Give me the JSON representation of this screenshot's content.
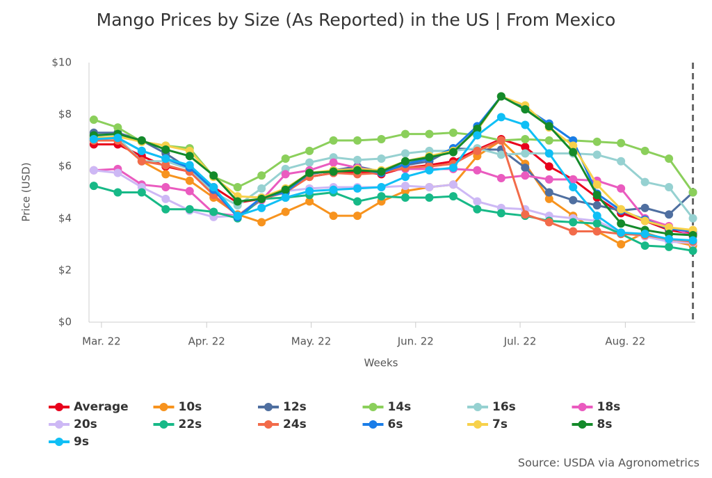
{
  "chart_data": {
    "type": "line",
    "title": "Mango Prices by Size (As Reported) in the US | From Mexico",
    "x_label": "Weeks",
    "y_label": "Price (USD)",
    "source": "Source: USDA via Agronometrics",
    "x": [
      0,
      1,
      2,
      3,
      4,
      5,
      6,
      7,
      8,
      9,
      10,
      11,
      12,
      13,
      14,
      15,
      16,
      17,
      18,
      19,
      20,
      21,
      22,
      23,
      24,
      25
    ],
    "xlim": [
      -0.2,
      25.1
    ],
    "xticks": [
      {
        "value": 0.32,
        "label": "Mar. 22"
      },
      {
        "value": 4.71,
        "label": "Apr. 22"
      },
      {
        "value": 9.07,
        "label": "May. 22"
      },
      {
        "value": 13.43,
        "label": "Jun. 22"
      },
      {
        "value": 17.79,
        "label": "Jul. 22"
      },
      {
        "value": 22.18,
        "label": "Aug. 22"
      }
    ],
    "ylim": [
      0,
      10
    ],
    "yticks": [
      {
        "value": 0,
        "label": "$0"
      },
      {
        "value": 2,
        "label": "$2"
      },
      {
        "value": 4,
        "label": "$4"
      },
      {
        "value": 6,
        "label": "$6"
      },
      {
        "value": 8,
        "label": "$8"
      },
      {
        "value": 10,
        "label": "$10"
      }
    ],
    "grid": false,
    "series": [
      {
        "name": "Average",
        "color": "#e8001c",
        "values": [
          6.85,
          6.85,
          6.4,
          6.0,
          5.8,
          5.2,
          4.6,
          4.75,
          5.05,
          5.6,
          5.75,
          5.8,
          5.7,
          5.95,
          6.05,
          6.2,
          6.65,
          7.05,
          6.75,
          6.0,
          5.5,
          4.8,
          4.2,
          3.9,
          3.55,
          3.4
        ]
      },
      {
        "name": "10s",
        "color": "#f7931e",
        "values": [
          7.0,
          7.0,
          6.2,
          5.7,
          5.45,
          4.8,
          4.15,
          3.85,
          4.25,
          4.65,
          4.1,
          4.1,
          4.65,
          5.05,
          5.2,
          5.3,
          6.4,
          7.0,
          6.1,
          4.75,
          4.1,
          3.5,
          3.0,
          3.45,
          3.15,
          2.95
        ]
      },
      {
        "name": "12s",
        "color": "#4f6fa0",
        "values": [
          7.3,
          7.3,
          7.0,
          6.5,
          5.9,
          5.2,
          4.05,
          4.8,
          5.0,
          5.7,
          5.85,
          6.0,
          5.8,
          6.05,
          6.2,
          6.7,
          6.65,
          6.65,
          5.95,
          5.0,
          4.7,
          4.5,
          4.3,
          4.4,
          4.15,
          5.0
        ]
      },
      {
        "name": "14s",
        "color": "#8bcf5b",
        "values": [
          7.8,
          7.5,
          6.95,
          6.8,
          6.7,
          5.6,
          5.2,
          5.65,
          6.3,
          6.6,
          7.0,
          7.0,
          7.05,
          7.25,
          7.25,
          7.3,
          7.2,
          7.0,
          7.05,
          7.0,
          7.0,
          6.95,
          6.9,
          6.6,
          6.3,
          5.0
        ]
      },
      {
        "name": "16s",
        "color": "#96d1d1",
        "values": [
          7.15,
          7.1,
          6.2,
          6.2,
          5.9,
          5.0,
          4.5,
          5.15,
          5.9,
          6.15,
          6.35,
          6.25,
          6.3,
          6.5,
          6.6,
          6.6,
          6.7,
          6.45,
          6.5,
          6.5,
          6.5,
          6.45,
          6.2,
          5.4,
          5.2,
          4.0
        ]
      },
      {
        "name": "18s",
        "color": "#ea5bbf",
        "values": [
          5.85,
          5.9,
          5.3,
          5.2,
          5.05,
          4.2,
          4.1,
          4.7,
          5.7,
          5.85,
          6.15,
          5.95,
          5.8,
          5.9,
          5.9,
          5.9,
          5.85,
          5.55,
          5.65,
          5.5,
          5.5,
          5.45,
          5.15,
          4.0,
          3.7,
          3.3
        ]
      },
      {
        "name": "20s",
        "color": "#cdb8f5",
        "values": [
          5.85,
          5.75,
          5.2,
          4.75,
          4.3,
          4.05,
          4.1,
          4.8,
          5.05,
          5.15,
          5.2,
          5.2,
          5.2,
          5.25,
          5.2,
          5.3,
          4.65,
          4.4,
          4.35,
          4.1,
          4.0,
          3.9,
          3.45,
          3.3,
          3.1,
          3.05
        ]
      },
      {
        "name": "22s",
        "color": "#17b987",
        "values": [
          5.25,
          5.0,
          5.0,
          4.35,
          4.35,
          4.25,
          4.0,
          4.75,
          4.8,
          4.9,
          5.0,
          4.65,
          4.85,
          4.8,
          4.8,
          4.85,
          4.35,
          4.2,
          4.1,
          3.9,
          3.85,
          3.8,
          3.4,
          2.95,
          2.9,
          2.75
        ]
      },
      {
        "name": "24s",
        "color": "#f26b4a",
        "values": [
          7.0,
          7.0,
          6.2,
          6.05,
          5.8,
          4.9,
          4.1,
          4.75,
          5.0,
          5.6,
          5.75,
          5.7,
          5.75,
          5.95,
          6.0,
          6.1,
          6.6,
          7.0,
          4.15,
          3.85,
          3.5,
          3.5,
          3.4,
          3.35,
          3.2,
          3.1
        ]
      },
      {
        "name": "6s",
        "color": "#1a7de8",
        "values": [
          7.1,
          7.1,
          6.6,
          6.3,
          5.95,
          5.1,
          4.05,
          4.8,
          5.0,
          5.75,
          5.8,
          5.9,
          5.75,
          6.1,
          6.3,
          6.7,
          7.55,
          8.7,
          8.25,
          7.65,
          7.0,
          4.95,
          4.3,
          3.95,
          3.6,
          3.5
        ]
      },
      {
        "name": "7s",
        "color": "#f7d14b",
        "values": [
          7.1,
          7.15,
          6.95,
          6.8,
          6.6,
          5.6,
          4.85,
          4.8,
          5.15,
          5.75,
          5.85,
          5.9,
          5.85,
          6.2,
          6.4,
          6.6,
          7.4,
          8.7,
          8.35,
          7.5,
          6.8,
          5.3,
          4.35,
          3.9,
          3.65,
          3.55
        ]
      },
      {
        "name": "8s",
        "color": "#148a2a",
        "values": [
          7.2,
          7.25,
          7.0,
          6.65,
          6.4,
          5.65,
          4.65,
          4.75,
          5.1,
          5.75,
          5.8,
          5.85,
          5.8,
          6.2,
          6.35,
          6.55,
          7.45,
          8.7,
          8.2,
          7.55,
          6.55,
          4.9,
          3.8,
          3.55,
          3.4,
          3.35
        ]
      },
      {
        "name": "9s",
        "color": "#10bff5",
        "values": [
          7.05,
          7.1,
          6.6,
          6.3,
          6.05,
          5.2,
          4.1,
          4.4,
          4.8,
          5.05,
          5.1,
          5.15,
          5.2,
          5.6,
          5.85,
          5.95,
          7.2,
          7.9,
          7.6,
          6.5,
          5.2,
          4.1,
          3.45,
          3.4,
          3.2,
          3.15
        ]
      }
    ]
  }
}
